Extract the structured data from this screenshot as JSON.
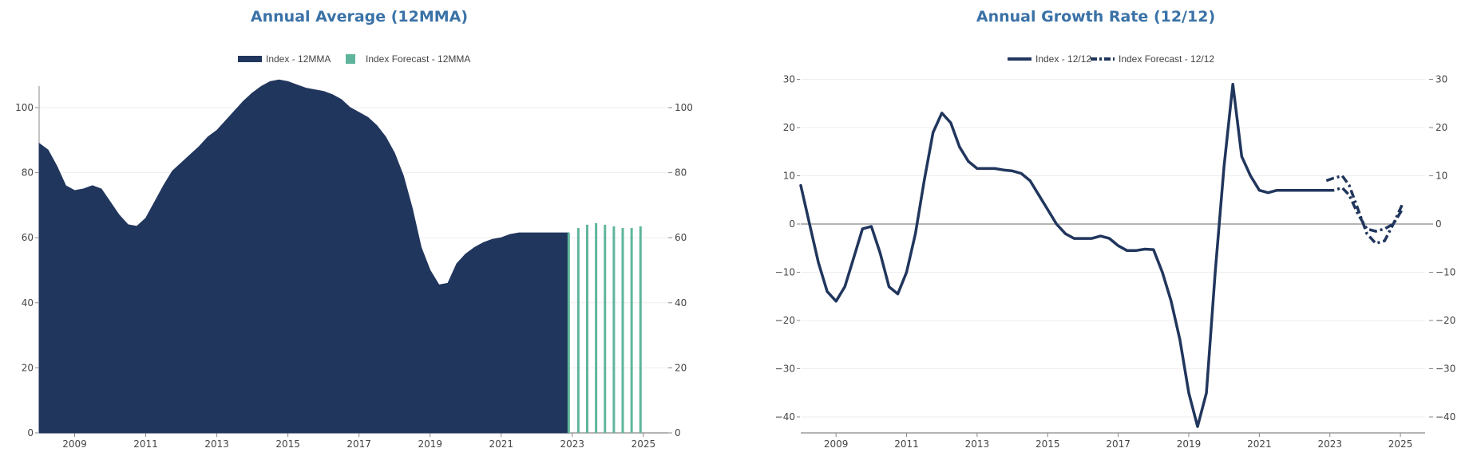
{
  "chart_data": [
    {
      "type": "area",
      "title": "Annual Average (12MMA)",
      "xlabel": "",
      "ylabel": "",
      "xlim": [
        2008.0,
        2025.7
      ],
      "ylim": [
        0,
        110
      ],
      "y_ticks": [
        0,
        20,
        40,
        60,
        80,
        100
      ],
      "x_ticks": [
        "2009",
        "2011",
        "2013",
        "2015",
        "2017",
        "2019",
        "2021",
        "2023",
        "2025"
      ],
      "grid": true,
      "legend_placement": "top-center",
      "colors": {
        "index": "#21365d",
        "forecast": "#5fb59c",
        "grid": "#eeeeee",
        "axis": "#888888"
      },
      "series": [
        {
          "name": "Index - 12MMA",
          "type": "area",
          "x": [
            2008.0,
            2008.25,
            2008.5,
            2008.75,
            2009.0,
            2009.25,
            2009.5,
            2009.75,
            2010.0,
            2010.25,
            2010.5,
            2010.75,
            2011.0,
            2011.25,
            2011.5,
            2011.75,
            2012.0,
            2012.25,
            2012.5,
            2012.75,
            2013.0,
            2013.25,
            2013.5,
            2013.75,
            2014.0,
            2014.25,
            2014.5,
            2014.75,
            2015.0,
            2015.25,
            2015.5,
            2015.75,
            2016.0,
            2016.25,
            2016.5,
            2016.75,
            2017.0,
            2017.25,
            2017.5,
            2017.75,
            2018.0,
            2018.25,
            2018.5,
            2018.75,
            2019.0,
            2019.25,
            2019.5,
            2019.75,
            2020.0,
            2020.25,
            2020.5,
            2020.75,
            2021.0,
            2021.25,
            2021.5,
            2021.75,
            2022.0,
            2022.25,
            2022.5,
            2022.75,
            2022.9
          ],
          "values": [
            89,
            87,
            82,
            76,
            74.5,
            75,
            76,
            75,
            71,
            67,
            64,
            63.5,
            66,
            71,
            76,
            80.5,
            83,
            85.5,
            88,
            91,
            93,
            96,
            99,
            102,
            104.5,
            106.5,
            108,
            108.5,
            108,
            107,
            106,
            105.5,
            105,
            104,
            102.5,
            100,
            98.5,
            97,
            94.5,
            91,
            86,
            79,
            69,
            57,
            50,
            45.5,
            46,
            52,
            55,
            57,
            58.5,
            59.5,
            60,
            61,
            61.5,
            61.5,
            61.5,
            61.5,
            61.5,
            61.5,
            61.5
          ]
        },
        {
          "name": "Index Forecast - 12MMA",
          "type": "bar",
          "x": [
            2022.9,
            2023.17,
            2023.42,
            2023.67,
            2023.92,
            2024.17,
            2024.42,
            2024.67,
            2024.92
          ],
          "values": [
            61.5,
            63,
            64,
            64.5,
            64,
            63.5,
            63,
            63,
            63.5
          ]
        }
      ]
    },
    {
      "type": "line",
      "title": "Annual Growth Rate (12/12)",
      "xlabel": "",
      "ylabel": "",
      "xlim": [
        2008.0,
        2025.7
      ],
      "ylim": [
        -43,
        31
      ],
      "y_ticks": [
        -40,
        -30,
        -20,
        -10,
        0,
        10,
        20,
        30
      ],
      "x_ticks": [
        "2009",
        "2011",
        "2013",
        "2015",
        "2017",
        "2019",
        "2021",
        "2023",
        "2025"
      ],
      "grid": true,
      "legend_placement": "top-center",
      "colors": {
        "line": "#21365d",
        "zero_line": "#888888",
        "grid": "#eeeeee"
      },
      "series": [
        {
          "name": "Index - 12/12",
          "style": "solid",
          "x": [
            2008.0,
            2008.25,
            2008.5,
            2008.75,
            2009.0,
            2009.25,
            2009.5,
            2009.75,
            2010.0,
            2010.25,
            2010.5,
            2010.75,
            2011.0,
            2011.25,
            2011.5,
            2011.75,
            2012.0,
            2012.25,
            2012.5,
            2012.75,
            2013.0,
            2013.25,
            2013.5,
            2013.75,
            2014.0,
            2014.25,
            2014.5,
            2014.75,
            2015.0,
            2015.25,
            2015.5,
            2015.75,
            2016.0,
            2016.25,
            2016.5,
            2016.75,
            2017.0,
            2017.25,
            2017.5,
            2017.75,
            2018.0,
            2018.25,
            2018.5,
            2018.75,
            2019.0,
            2019.25,
            2019.5,
            2019.75,
            2020.0,
            2020.25,
            2020.5,
            2020.75,
            2021.0,
            2021.25,
            2021.5,
            2021.75,
            2022.0,
            2022.25,
            2022.5,
            2022.75,
            2022.9
          ],
          "values": [
            8,
            0,
            -8,
            -14,
            -16,
            -13,
            -7,
            -1,
            -0.5,
            -6,
            -13,
            -14.5,
            -10,
            -2,
            9,
            19,
            23,
            21,
            16,
            13,
            11.5,
            11.5,
            11.5,
            11.2,
            11,
            10.5,
            9,
            6,
            3,
            0,
            -2,
            -3,
            -3,
            -3,
            -2.5,
            -3,
            -4.5,
            -5.5,
            -5.5,
            -5.2,
            -5.3,
            -10,
            -16,
            -24,
            -35,
            -42,
            -35,
            -10,
            12,
            29,
            14,
            10,
            7,
            6.5,
            7,
            7,
            7,
            7,
            7,
            7,
            7
          ]
        },
        {
          "name": "Index Forecast - 12/12",
          "style": "dashdot",
          "x": [
            2022.9,
            2023.1,
            2023.35,
            2023.55,
            2023.8,
            2024.05,
            2024.3,
            2024.55,
            2024.8,
            2025.05
          ],
          "values": [
            9,
            9.5,
            10,
            8,
            3,
            -2,
            -4,
            -3.5,
            0,
            4
          ]
        },
        {
          "name": "",
          "style": "dashdot",
          "x": [
            2022.9,
            2023.1,
            2023.35,
            2023.55,
            2023.8,
            2024.05,
            2024.3,
            2024.55,
            2024.8,
            2025.05
          ],
          "values": [
            7,
            7,
            7.5,
            6,
            2,
            -1,
            -1.5,
            -1,
            0,
            3
          ]
        }
      ]
    }
  ]
}
